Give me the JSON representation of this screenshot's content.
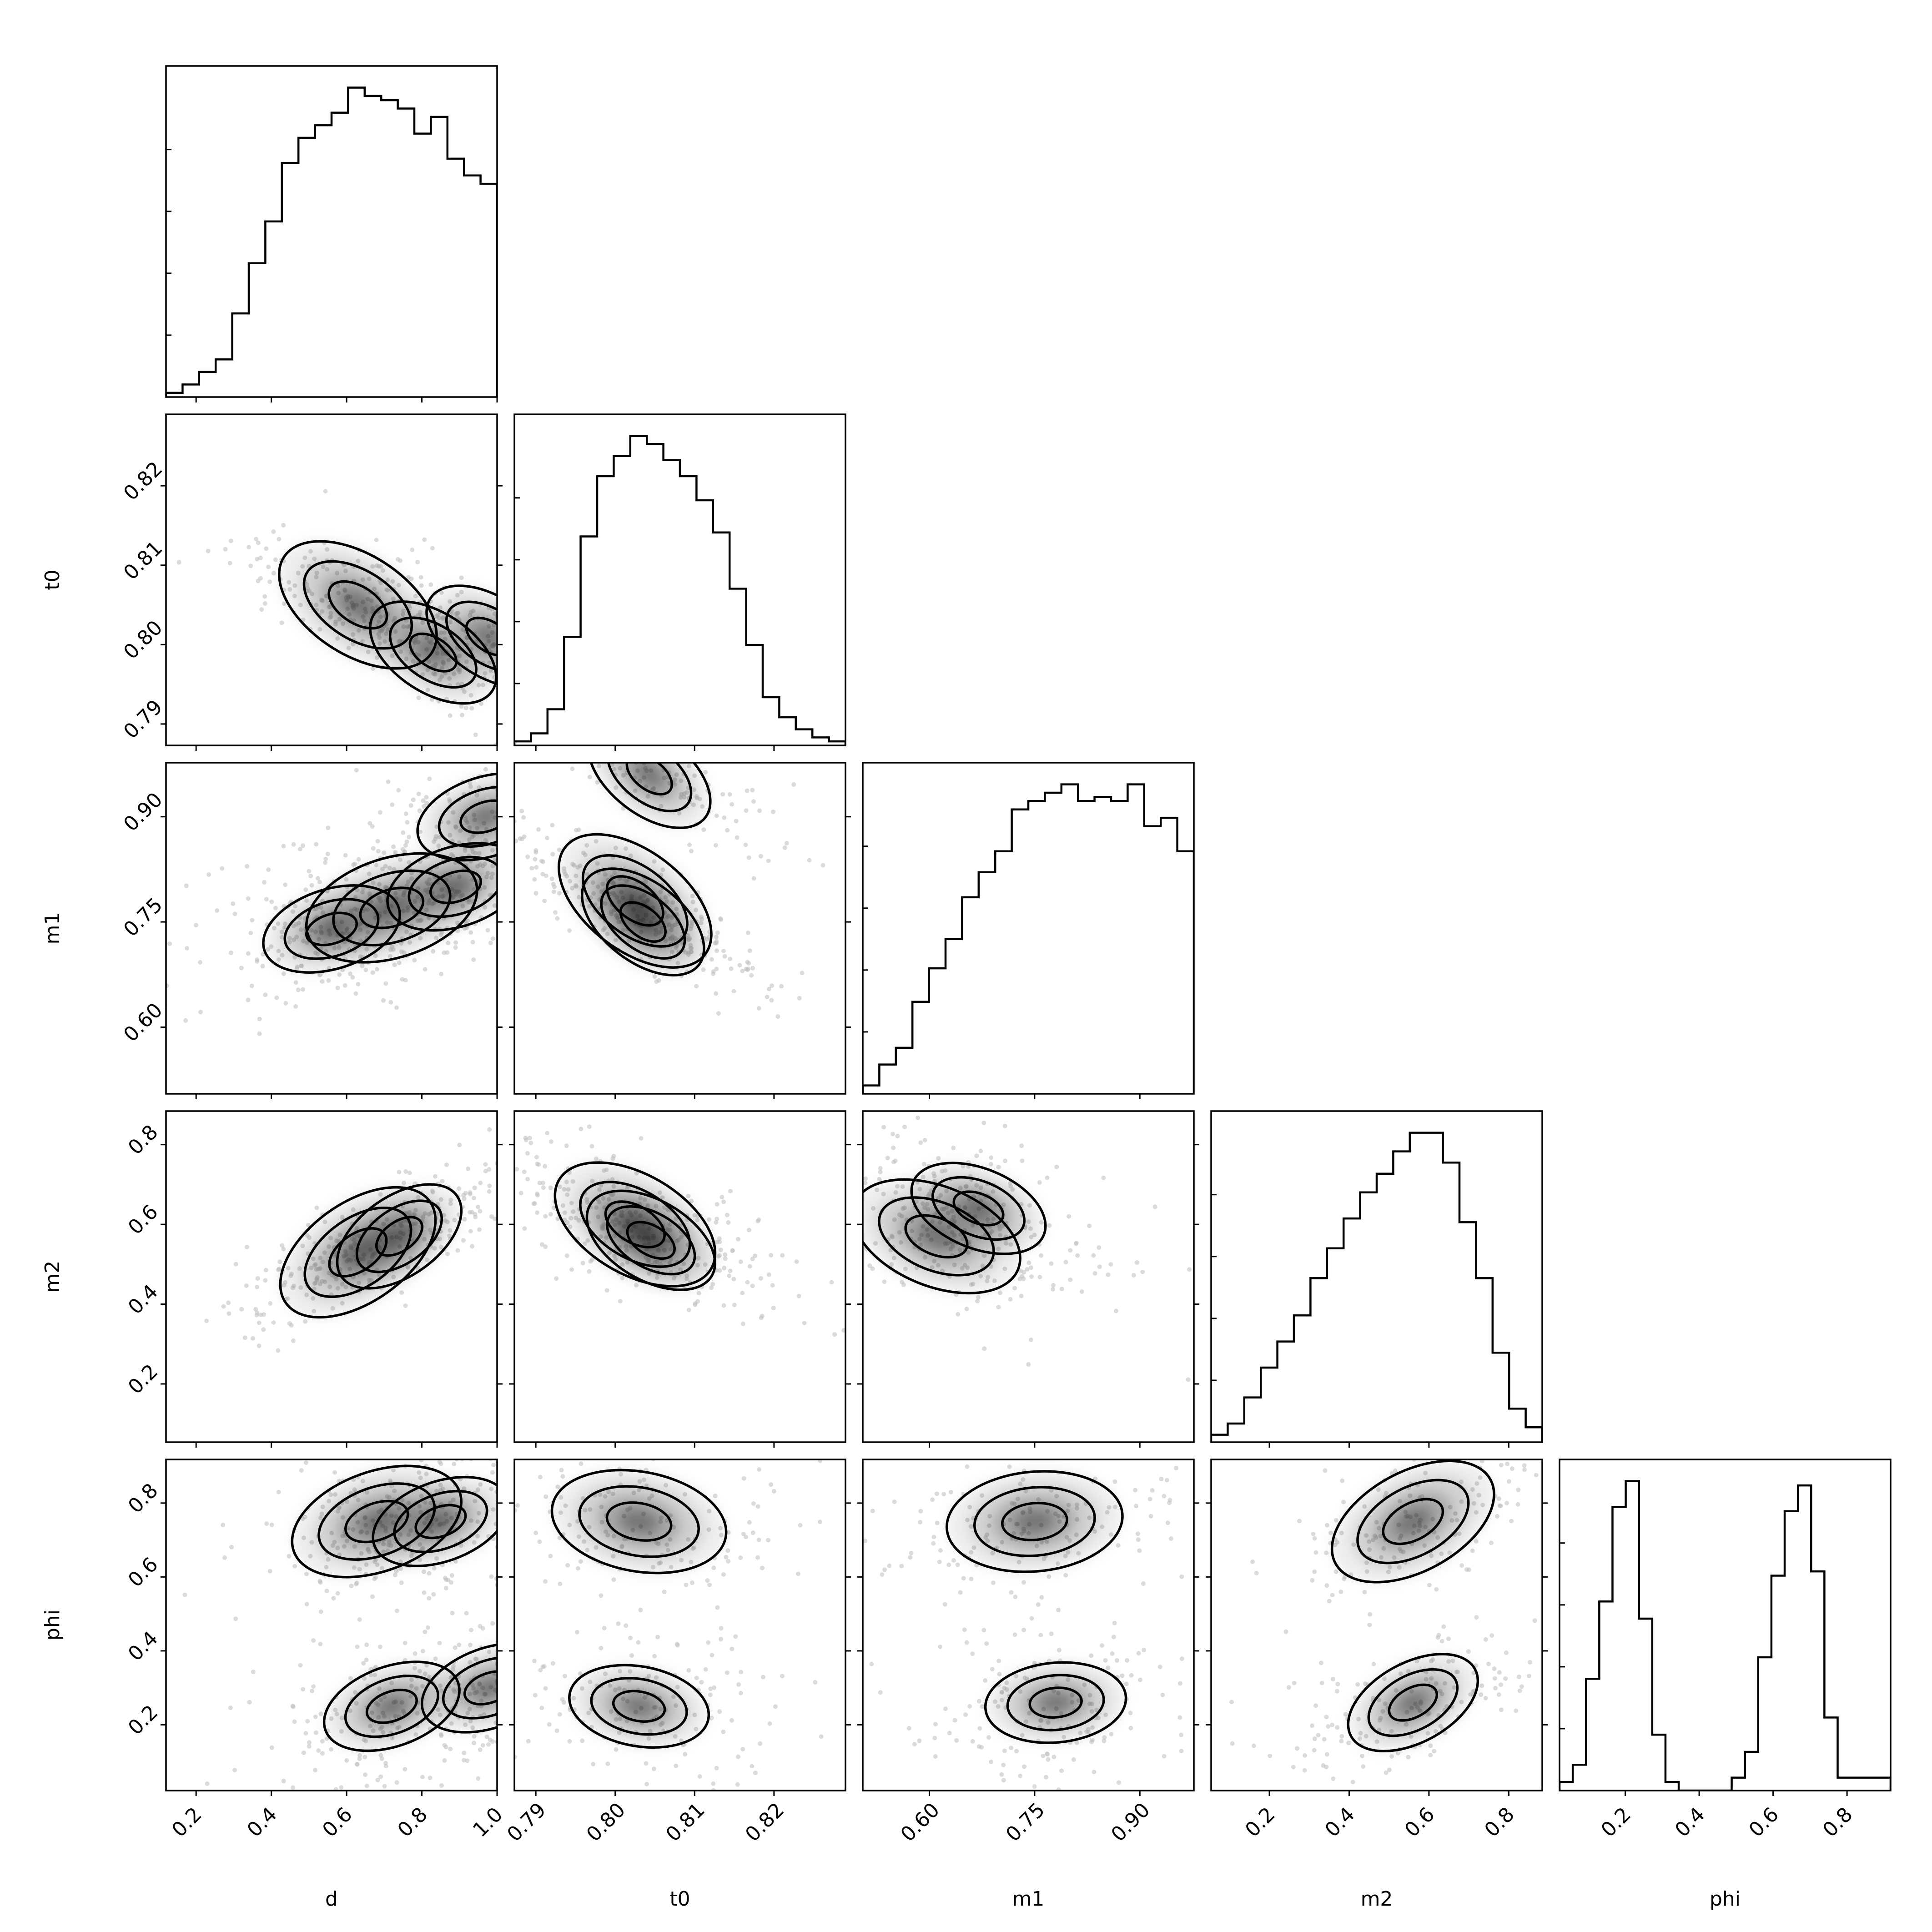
{
  "chart_data": {
    "type": "corner",
    "parameters": [
      {
        "name": "d",
        "label": "d",
        "range": [
          0.12,
          1.0
        ],
        "ticks": [
          0.2,
          0.4,
          0.6,
          0.8,
          1.0
        ],
        "tick_labels": [
          "0.2",
          "0.4",
          "0.6",
          "0.8",
          "1.0"
        ]
      },
      {
        "name": "t0",
        "label": "t0",
        "range": [
          0.7873,
          0.829
        ],
        "ticks": [
          0.79,
          0.8,
          0.81,
          0.82
        ],
        "tick_labels": [
          "0.79",
          "0.80",
          "0.81",
          "0.82"
        ]
      },
      {
        "name": "m1",
        "label": "m1",
        "range": [
          0.505,
          0.977
        ],
        "ticks": [
          0.6,
          0.75,
          0.9
        ],
        "tick_labels": [
          "0.60",
          "0.75",
          "0.90"
        ]
      },
      {
        "name": "m2",
        "label": "m2",
        "range": [
          0.054,
          0.884
        ],
        "ticks": [
          0.2,
          0.4,
          0.6,
          0.8
        ],
        "tick_labels": [
          "0.2",
          "0.4",
          "0.6",
          "0.8"
        ]
      },
      {
        "name": "phi",
        "label": "phi",
        "range": [
          0.022,
          0.918
        ],
        "ticks": [
          0.2,
          0.4,
          0.6,
          0.8
        ],
        "tick_labels": [
          "0.2",
          "0.4",
          "0.6",
          "0.8"
        ]
      }
    ],
    "histograms": [
      {
        "param": "d",
        "bins": 20,
        "counts": [
          1,
          3,
          6,
          9,
          20,
          32,
          42,
          56,
          62,
          65,
          68,
          74,
          72,
          71,
          69,
          63,
          67,
          57,
          53,
          51
        ]
      },
      {
        "param": "t0",
        "bins": 20,
        "counts": [
          1,
          3,
          9,
          27,
          52,
          67,
          72,
          77,
          75,
          71,
          67,
          61,
          53,
          39,
          25,
          12,
          7,
          4,
          2,
          1
        ]
      },
      {
        "param": "m1",
        "bins": 20,
        "counts": [
          2,
          7,
          11,
          22,
          30,
          37,
          47,
          53,
          58,
          68,
          70,
          72,
          74,
          70,
          71,
          70,
          74,
          64,
          66,
          58
        ]
      },
      {
        "param": "m2",
        "bins": 20,
        "counts": [
          2,
          5,
          12,
          20,
          27,
          34,
          44,
          52,
          60,
          67,
          72,
          78,
          83,
          83,
          75,
          59,
          44,
          24,
          9,
          4
        ]
      },
      {
        "param": "phi",
        "bins": 25,
        "counts": [
          2,
          6,
          26,
          44,
          66,
          72,
          40,
          13,
          2,
          0,
          0,
          0,
          0,
          3,
          9,
          31,
          50,
          65,
          71,
          51,
          17,
          3,
          3,
          3,
          3
        ]
      }
    ],
    "pairs": [
      {
        "x": "d",
        "y": "t0",
        "peaks": [
          {
            "x": 0.63,
            "y": 0.805
          },
          {
            "x": 0.83,
            "y": 0.799
          },
          {
            "x": 0.98,
            "y": 0.801
          }
        ],
        "correlation": -0.72
      },
      {
        "x": "d",
        "y": "m1",
        "peaks": [
          {
            "x": 0.72,
            "y": 0.77
          },
          {
            "x": 0.56,
            "y": 0.74
          },
          {
            "x": 0.89,
            "y": 0.8
          },
          {
            "x": 0.97,
            "y": 0.9
          }
        ],
        "correlation": 0.35
      },
      {
        "x": "d",
        "y": "m2",
        "peaks": [
          {
            "x": 0.63,
            "y": 0.53
          },
          {
            "x": 0.74,
            "y": 0.57
          }
        ],
        "correlation": 0.78
      },
      {
        "x": "d",
        "y": "phi",
        "peaks": [
          {
            "x": 0.68,
            "y": 0.75
          },
          {
            "x": 0.85,
            "y": 0.75
          },
          {
            "x": 0.72,
            "y": 0.25
          },
          {
            "x": 0.98,
            "y": 0.3
          }
        ],
        "correlation": 0.4
      },
      {
        "x": "t0",
        "y": "m1",
        "peaks": [
          {
            "x": 0.8025,
            "y": 0.78
          },
          {
            "x": 0.8035,
            "y": 0.75
          },
          {
            "x": 0.8043,
            "y": 0.96
          }
        ],
        "correlation": -0.85
      },
      {
        "x": "t0",
        "y": "m2",
        "peaks": [
          {
            "x": 0.8025,
            "y": 0.6
          },
          {
            "x": 0.8045,
            "y": 0.56
          }
        ],
        "correlation": -0.65
      },
      {
        "x": "t0",
        "y": "phi",
        "peaks": [
          {
            "x": 0.803,
            "y": 0.75
          },
          {
            "x": 0.803,
            "y": 0.25
          }
        ],
        "correlation": -0.2
      },
      {
        "x": "m1",
        "y": "m2",
        "peaks": [
          {
            "x": 0.61,
            "y": 0.57
          },
          {
            "x": 0.67,
            "y": 0.64
          }
        ],
        "correlation": -0.45
      },
      {
        "x": "m1",
        "y": "phi",
        "peaks": [
          {
            "x": 0.75,
            "y": 0.75
          },
          {
            "x": 0.78,
            "y": 0.26
          }
        ],
        "correlation": 0.1
      },
      {
        "x": "m2",
        "y": "phi",
        "peaks": [
          {
            "x": 0.56,
            "y": 0.75
          },
          {
            "x": 0.56,
            "y": 0.26
          }
        ],
        "correlation": 0.6
      }
    ],
    "style": {
      "line_color": "#000000",
      "point_color": "#bdbdbd",
      "fill_color": "#000000"
    }
  }
}
